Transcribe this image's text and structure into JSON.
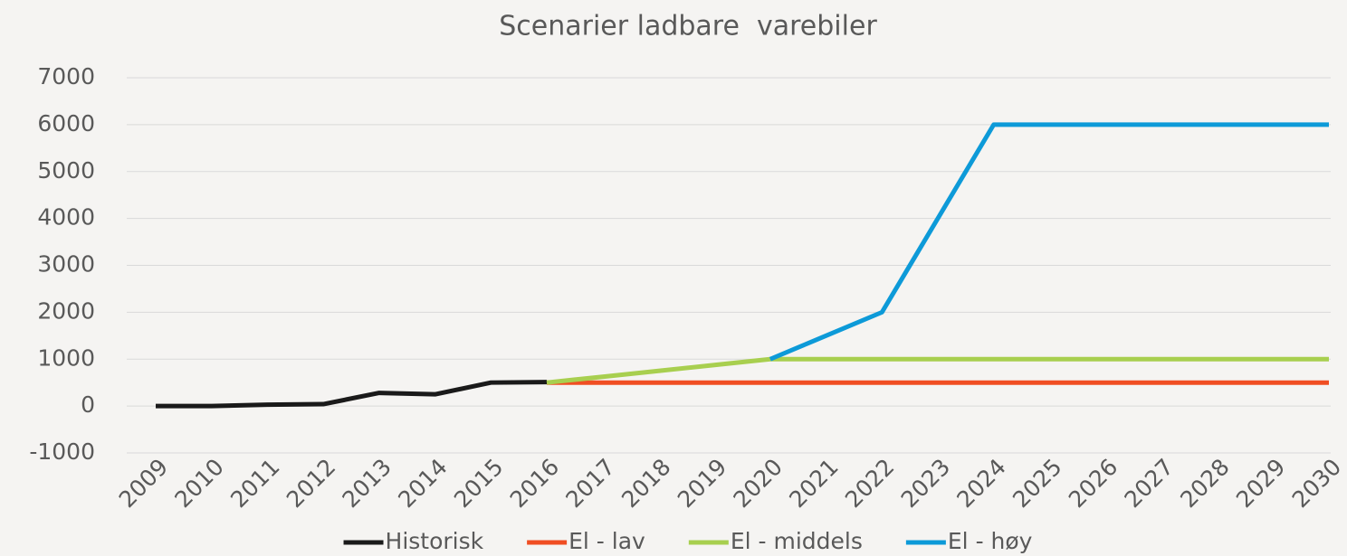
{
  "chart_data": {
    "type": "line",
    "title": "Scenarier ladbare  varebiler",
    "categories": [
      "2009",
      "2010",
      "2011",
      "2012",
      "2013",
      "2014",
      "2015",
      "2016",
      "2017",
      "2018",
      "2019",
      "2020",
      "2021",
      "2022",
      "2023",
      "2024",
      "2025",
      "2026",
      "2027",
      "2028",
      "2029",
      "2030"
    ],
    "series": [
      {
        "name": "Historisk",
        "color": "#1a1a1a",
        "values": [
          0,
          0,
          30,
          40,
          280,
          250,
          500,
          510,
          null,
          null,
          null,
          null,
          null,
          null,
          null,
          null,
          null,
          null,
          null,
          null,
          null,
          null
        ]
      },
      {
        "name": "El - lav",
        "color": "#f04e23",
        "values": [
          null,
          null,
          null,
          null,
          null,
          null,
          null,
          500,
          500,
          500,
          500,
          500,
          500,
          500,
          500,
          500,
          500,
          500,
          500,
          500,
          500,
          500
        ]
      },
      {
        "name": "El - middels",
        "color": "#a8cf4f",
        "values": [
          null,
          null,
          null,
          null,
          null,
          null,
          null,
          500,
          625,
          750,
          875,
          1000,
          1000,
          1000,
          1000,
          1000,
          1000,
          1000,
          1000,
          1000,
          1000,
          1000
        ]
      },
      {
        "name": "El - høy",
        "color": "#0d9ad8",
        "values": [
          null,
          null,
          null,
          null,
          null,
          null,
          null,
          null,
          null,
          null,
          null,
          1000,
          1500,
          2000,
          4000,
          6000,
          6000,
          6000,
          6000,
          6000,
          6000,
          6000
        ]
      }
    ],
    "ylim": [
      -1000,
      7000
    ],
    "yticks": [
      -1000,
      0,
      1000,
      2000,
      3000,
      4000,
      5000,
      6000,
      7000
    ],
    "grid": true,
    "legend": "bottom"
  }
}
